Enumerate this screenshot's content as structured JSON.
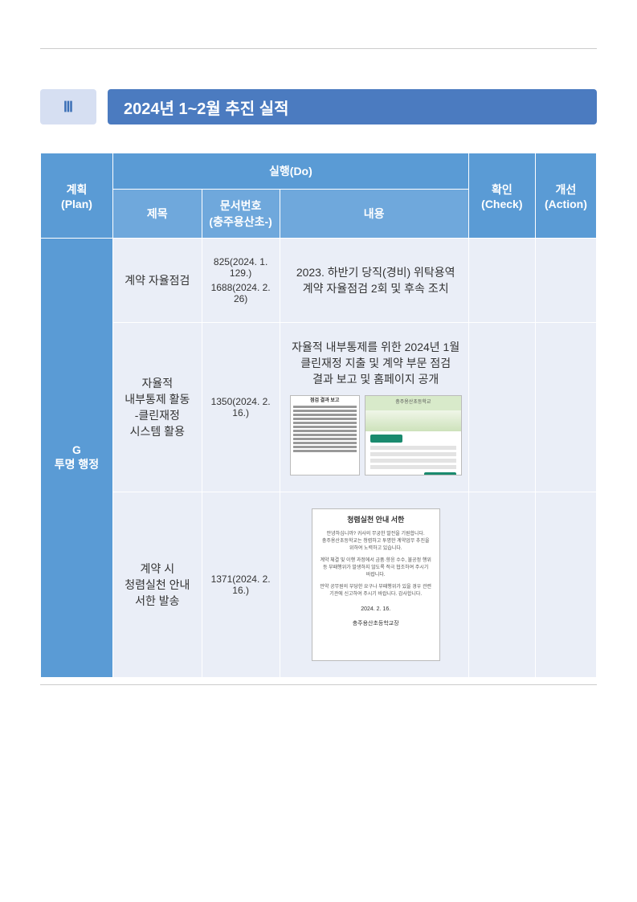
{
  "section": {
    "num": "Ⅲ",
    "title": "2024년 1~2월 추진 실적"
  },
  "headers": {
    "plan": "계획\n(Plan)",
    "do": "실행(Do)",
    "do_title": "제목",
    "do_docnum": "문서번호\n(충주용산초-)",
    "do_content": "내용",
    "check": "확인\n(Check)",
    "action": "개선\n(Action)"
  },
  "plan_label": "G\n투명 행정",
  "rows": [
    {
      "title": "계약 자율점검",
      "docnums": [
        "825(2024. 1. 129.)",
        "1688(2024. 2. 26)"
      ],
      "content": "2023. 하반기 당직(경비) 위탁용역 계약 자율점검 2회 및 후속 조치"
    },
    {
      "title": "자율적 내부통제 활동\n-클린재정 시스템 활용",
      "docnums": [
        "1350(2024. 2. 16.)"
      ],
      "content": "자율적 내부통제를 위한 2024년 1월 클린재정 지출 및 계약 부문 점검 결과 보고 및 홈페이지 공개"
    },
    {
      "title": "계약 시 청렴실천 안내 서한 발송",
      "docnums": [
        "1371(2024. 2. 16.)"
      ],
      "content_doc_title": "청렴실천 안내 서한",
      "content_doc_date": "2024. 2. 16.",
      "content_doc_sig": "충주용산초등학교장"
    }
  ],
  "colors": {
    "header_bg": "#5a9bd5",
    "subheader_bg": "#6fa8dc",
    "cell_bg": "#eaeef7",
    "section_num_bg": "#d6dff2",
    "section_title_bg": "#4b7bc0"
  }
}
